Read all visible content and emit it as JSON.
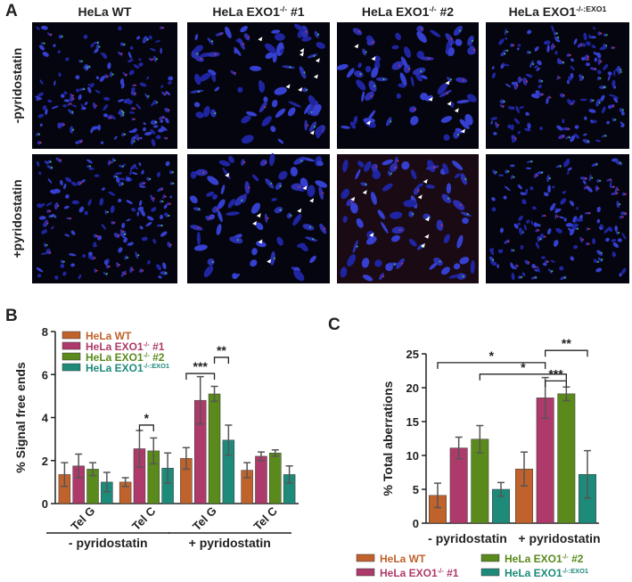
{
  "panel_a": {
    "label": "A",
    "columns": [
      "HeLa WT",
      "HeLa EXO1-/- #1",
      "HeLa EXO1-/- #2",
      "HeLa EXO1-/-:EXO1"
    ],
    "rows": [
      "-pyridostatin",
      "+pyridostatin"
    ]
  },
  "chart_data": [
    {
      "type": "bar",
      "panel": "B",
      "ylabel": "% Signal free ends",
      "categories": [
        "Tel G",
        "Tel C",
        "Tel G",
        "Tel C"
      ],
      "groups": [
        "- pyridostatin",
        "+ pyridostatin"
      ],
      "ylim": [
        0,
        8
      ],
      "yticks": [
        0,
        2,
        4,
        6,
        8
      ],
      "series": [
        {
          "name": "HeLa WT",
          "color": "#c0622b",
          "values": [
            1.35,
            1.0,
            2.1,
            1.55
          ],
          "errors": [
            0.55,
            0.2,
            0.5,
            0.35
          ]
        },
        {
          "name": "HeLa EXO1-/- #1",
          "color": "#ad3a6a",
          "values": [
            1.75,
            2.55,
            4.8,
            2.2
          ],
          "errors": [
            0.55,
            0.85,
            1.1,
            0.2
          ]
        },
        {
          "name": "HeLa EXO1-/- #2",
          "color": "#5a8a1c",
          "values": [
            1.6,
            2.45,
            5.1,
            2.35
          ],
          "errors": [
            0.3,
            0.6,
            0.35,
            0.15
          ]
        },
        {
          "name": "HeLa EXO1-/-:EXO1",
          "color": "#1e8a7a",
          "values": [
            1.0,
            1.65,
            2.95,
            1.35
          ],
          "errors": [
            0.45,
            0.7,
            0.7,
            0.4
          ]
        }
      ],
      "annotations": [
        "*",
        "***",
        "**"
      ]
    },
    {
      "type": "bar",
      "panel": "C",
      "ylabel": "% Total aberrations",
      "categories": [
        "- pyridostatin",
        "+ pyridostatin"
      ],
      "ylim": [
        0,
        25
      ],
      "yticks": [
        0,
        5,
        10,
        15,
        20,
        25
      ],
      "series": [
        {
          "name": "HeLa WT",
          "color": "#c0622b",
          "values": [
            4.1,
            8.0
          ],
          "errors": [
            1.8,
            2.5
          ]
        },
        {
          "name": "HeLa EXO1-/- #1",
          "color": "#ad3a6a",
          "values": [
            11.1,
            18.5
          ],
          "errors": [
            1.6,
            3.0
          ]
        },
        {
          "name": "HeLa EXO1-/- #2",
          "color": "#5a8a1c",
          "values": [
            12.4,
            19.1
          ],
          "errors": [
            2.0,
            1.0
          ]
        },
        {
          "name": "HeLa EXO1-/-:EXO1",
          "color": "#1e8a7a",
          "values": [
            5.0,
            7.2
          ],
          "errors": [
            1.0,
            3.5
          ]
        }
      ],
      "annotations": [
        "*",
        "*",
        "***",
        "**"
      ]
    }
  ]
}
